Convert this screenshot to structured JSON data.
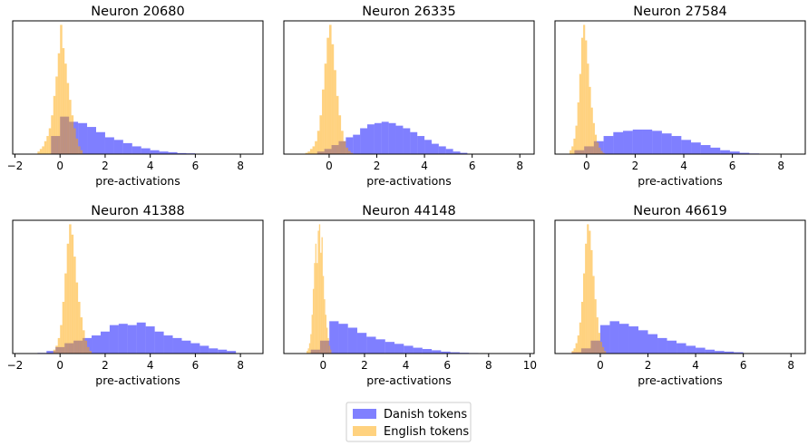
{
  "colors": {
    "danish": "#0000ff",
    "english": "#ffa500",
    "bar_alpha": 0.5
  },
  "legend": {
    "entries": [
      "Danish tokens",
      "English tokens"
    ],
    "placement": "bottom-center"
  },
  "chart_data": [
    {
      "type": "histogram",
      "title": "Neuron 20680",
      "xlabel": "pre-activations",
      "xlim": [
        -2.1,
        9.0
      ],
      "xticks": [
        -2,
        0,
        2,
        4,
        6,
        8
      ],
      "xtick_labels": [
        "−2",
        "0",
        "2",
        "4",
        "6",
        "8"
      ],
      "ymax": 1.0,
      "series": [
        {
          "name": "Danish tokens",
          "start": -0.4,
          "width": 0.4,
          "values": [
            0.14,
            0.29,
            0.25,
            0.24,
            0.21,
            0.17,
            0.13,
            0.11,
            0.085,
            0.06,
            0.045,
            0.03,
            0.02,
            0.015,
            0.008,
            0.006,
            0.003
          ]
        },
        {
          "name": "English tokens",
          "start": -1.0,
          "width": 0.1,
          "values": [
            0.02,
            0.04,
            0.06,
            0.1,
            0.14,
            0.2,
            0.3,
            0.45,
            0.6,
            0.78,
            1.0,
            0.82,
            0.7,
            0.55,
            0.42,
            0.3,
            0.2,
            0.12,
            0.06,
            0.03
          ]
        }
      ]
    },
    {
      "type": "histogram",
      "title": "Neuron 26335",
      "xlabel": "pre-activations",
      "xlim": [
        -1.9,
        8.6
      ],
      "xticks": [
        0,
        2,
        4,
        6,
        8
      ],
      "xtick_labels": [
        "0",
        "2",
        "4",
        "6",
        "8"
      ],
      "ymax": 1.0,
      "series": [
        {
          "name": "Danish tokens",
          "start": -0.5,
          "width": 0.3,
          "values": [
            0.02,
            0.04,
            0.07,
            0.1,
            0.13,
            0.15,
            0.2,
            0.23,
            0.24,
            0.25,
            0.24,
            0.22,
            0.2,
            0.17,
            0.14,
            0.11,
            0.08,
            0.06,
            0.04,
            0.02,
            0.01
          ]
        },
        {
          "name": "English tokens",
          "start": -1.0,
          "width": 0.1,
          "values": [
            0.01,
            0.02,
            0.04,
            0.06,
            0.1,
            0.18,
            0.3,
            0.5,
            0.7,
            0.9,
            1.0,
            0.85,
            0.65,
            0.45,
            0.3,
            0.18,
            0.1,
            0.05,
            0.025,
            0.01
          ]
        }
      ]
    },
    {
      "type": "histogram",
      "title": "Neuron 27584",
      "xlabel": "pre-activations",
      "xlim": [
        -1.3,
        9.0
      ],
      "xticks": [
        0,
        2,
        4,
        6,
        8
      ],
      "xtick_labels": [
        "0",
        "2",
        "4",
        "6",
        "8"
      ],
      "ymax": 1.0,
      "series": [
        {
          "name": "Danish tokens",
          "start": -0.5,
          "width": 0.4,
          "values": [
            0.03,
            0.06,
            0.1,
            0.14,
            0.17,
            0.18,
            0.19,
            0.19,
            0.18,
            0.16,
            0.14,
            0.11,
            0.09,
            0.07,
            0.05,
            0.03,
            0.02,
            0.01,
            0.005
          ]
        },
        {
          "name": "English tokens",
          "start": -0.7,
          "width": 0.08,
          "values": [
            0.03,
            0.06,
            0.12,
            0.22,
            0.4,
            0.62,
            0.9,
            1.0,
            0.88,
            0.7,
            0.52,
            0.36,
            0.24,
            0.15,
            0.09,
            0.05,
            0.025,
            0.01
          ]
        }
      ]
    },
    {
      "type": "histogram",
      "title": "Neuron 41388",
      "xlabel": "pre-activations",
      "xlim": [
        -2.1,
        9.0
      ],
      "xticks": [
        -2,
        0,
        2,
        4,
        6,
        8
      ],
      "xtick_labels": [
        "−2",
        "0",
        "2",
        "4",
        "6",
        "8"
      ],
      "ymax": 1.0,
      "series": [
        {
          "name": "Danish tokens",
          "start": -1.0,
          "width": 0.4,
          "values": [
            0.005,
            0.02,
            0.05,
            0.08,
            0.1,
            0.12,
            0.14,
            0.17,
            0.22,
            0.23,
            0.22,
            0.24,
            0.21,
            0.17,
            0.14,
            0.12,
            0.1,
            0.08,
            0.06,
            0.04,
            0.03,
            0.02
          ]
        },
        {
          "name": "English tokens",
          "start": -0.3,
          "width": 0.1,
          "values": [
            0.03,
            0.06,
            0.12,
            0.22,
            0.4,
            0.62,
            0.85,
            1.0,
            0.92,
            0.75,
            0.55,
            0.4,
            0.28,
            0.18,
            0.1,
            0.05,
            0.02
          ]
        }
      ]
    },
    {
      "type": "histogram",
      "title": "Neuron 44148",
      "xlabel": "pre-activations",
      "xlim": [
        -1.9,
        10.2
      ],
      "xticks": [
        0,
        2,
        4,
        6,
        8,
        10
      ],
      "xtick_labels": [
        "0",
        "2",
        "4",
        "6",
        "8",
        "10"
      ],
      "ymax": 1.0,
      "series": [
        {
          "name": "Danish tokens",
          "start": -0.6,
          "width": 0.45,
          "values": [
            0.03,
            0.1,
            0.25,
            0.23,
            0.2,
            0.16,
            0.13,
            0.11,
            0.09,
            0.075,
            0.06,
            0.045,
            0.035,
            0.025,
            0.015,
            0.01,
            0.006,
            0.004,
            0.002,
            0.002,
            0.001,
            0.001,
            0.001,
            0.001
          ]
        },
        {
          "name": "English tokens",
          "start": -0.8,
          "width": 0.06,
          "values": [
            0.02,
            0.04,
            0.08,
            0.15,
            0.3,
            0.5,
            0.7,
            0.85,
            0.7,
            0.95,
            1.0,
            0.78,
            0.9,
            0.6,
            0.42,
            0.3,
            0.2,
            0.12,
            0.06,
            0.03
          ]
        }
      ]
    },
    {
      "type": "histogram",
      "title": "Neuron 46619",
      "xlabel": "pre-activations",
      "xlim": [
        -1.9,
        8.6
      ],
      "xticks": [
        0,
        2,
        4,
        6,
        8
      ],
      "xtick_labels": [
        "0",
        "2",
        "4",
        "6",
        "8"
      ],
      "ymax": 1.0,
      "series": [
        {
          "name": "Danish tokens",
          "start": -1.2,
          "width": 0.4,
          "values": [
            0.01,
            0.04,
            0.1,
            0.22,
            0.25,
            0.23,
            0.21,
            0.18,
            0.15,
            0.12,
            0.1,
            0.08,
            0.06,
            0.045,
            0.03,
            0.02,
            0.015,
            0.01
          ]
        },
        {
          "name": "English tokens",
          "start": -1.2,
          "width": 0.08,
          "values": [
            0.02,
            0.04,
            0.08,
            0.14,
            0.24,
            0.4,
            0.62,
            0.85,
            1.0,
            0.95,
            0.8,
            0.6,
            0.42,
            0.28,
            0.16,
            0.09,
            0.05,
            0.02
          ]
        }
      ]
    }
  ]
}
